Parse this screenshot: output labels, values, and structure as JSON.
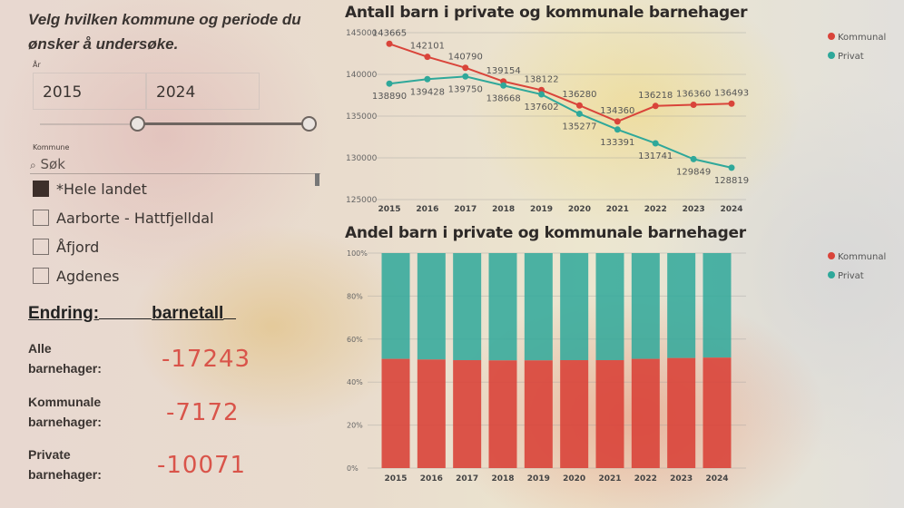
{
  "filters": {
    "prompt": "Velg hvilken kommune og periode du ønsker å undersøke.",
    "year_slicer": {
      "label": "År",
      "from": "2015",
      "to": "2024"
    },
    "kommune_slicer": {
      "label": "Kommune",
      "search_placeholder": "Søk",
      "items": [
        {
          "label": "*Hele landet",
          "checked": true
        },
        {
          "label": "Aarborte - Hattfjelldal",
          "checked": false
        },
        {
          "label": "Åfjord",
          "checked": false
        },
        {
          "label": "Agdenes",
          "checked": false
        }
      ]
    }
  },
  "change": {
    "header_left": "Endring:",
    "header_right": "barnetall",
    "rows": [
      {
        "label_1": "Alle",
        "label_2": "barnehager:",
        "value": "-17243"
      },
      {
        "label_1": "Kommunale",
        "label_2": "barnehager:",
        "value": "-7172"
      },
      {
        "label_1": "Private",
        "label_2": "barnehager:",
        "value": "-10071"
      }
    ]
  },
  "colors": {
    "kommunal": "#d9443a",
    "privat": "#2fa89a"
  },
  "chart_data": [
    {
      "type": "line",
      "title": "Antall barn i private og kommunale barnehager",
      "x": [
        "2015",
        "2016",
        "2017",
        "2018",
        "2019",
        "2020",
        "2021",
        "2022",
        "2023",
        "2024"
      ],
      "ylim": [
        125000,
        145000
      ],
      "yticks": [
        "125000",
        "130000",
        "135000",
        "140000",
        "145000"
      ],
      "grid": true,
      "legend": "top-right",
      "series": [
        {
          "name": "Kommunal",
          "values": [
            143665,
            142101,
            140790,
            139154,
            138122,
            136280,
            134360,
            136218,
            136360,
            136493
          ]
        },
        {
          "name": "Privat",
          "values": [
            138890,
            139428,
            139750,
            138668,
            137602,
            135277,
            133391,
            131741,
            129849,
            128819
          ]
        }
      ]
    },
    {
      "type": "bar",
      "stacked": "100%",
      "title": "Andel barn i private og kommunale barnehager",
      "categories": [
        "2015",
        "2016",
        "2017",
        "2018",
        "2019",
        "2020",
        "2021",
        "2022",
        "2023",
        "2024"
      ],
      "ylim": [
        0,
        100
      ],
      "yticks": [
        "0%",
        "20%",
        "40%",
        "60%",
        "80%",
        "100%"
      ],
      "grid": true,
      "legend": "top-right",
      "series": [
        {
          "name": "Kommunal",
          "values": [
            50.8,
            50.5,
            50.2,
            50.1,
            50.1,
            50.2,
            50.2,
            50.8,
            51.2,
            51.4
          ]
        },
        {
          "name": "Privat",
          "values": [
            49.2,
            49.5,
            49.8,
            49.9,
            49.9,
            49.8,
            49.8,
            49.2,
            48.8,
            48.6
          ]
        }
      ]
    }
  ]
}
